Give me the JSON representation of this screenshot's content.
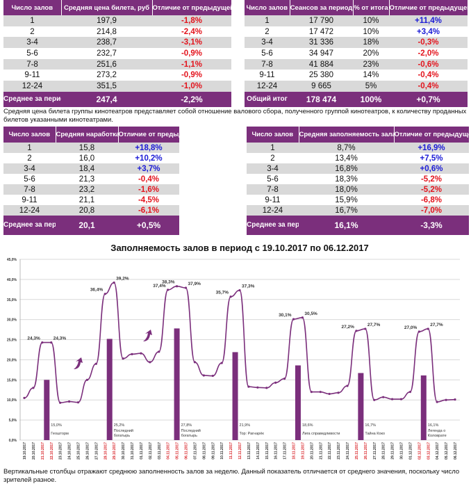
{
  "table_price": {
    "headers": [
      "Число залов",
      "Средняя цена билета, руб",
      "Отличие\nот предыдущей недели"
    ],
    "rows": [
      [
        "1",
        "197,9",
        "-1,8%"
      ],
      [
        "2",
        "214,8",
        "-2,4%"
      ],
      [
        "3-4",
        "238,7",
        "-3,1%"
      ],
      [
        "5-6",
        "232,7",
        "-0,9%"
      ],
      [
        "7-8",
        "251,6",
        "-1,1%"
      ],
      [
        "9-11",
        "273,2",
        "-0,9%"
      ],
      [
        "12-24",
        "351,5",
        "-1,0%"
      ]
    ],
    "total": [
      "Среднее за период",
      "247,4",
      "-2,2%"
    ]
  },
  "table_sessions": {
    "headers": [
      "Число залов",
      "Сеансов за период",
      "% от итога",
      "Отличие от предыдущей недели"
    ],
    "rows": [
      [
        "1",
        "17 790",
        "10%",
        "+11,4%"
      ],
      [
        "2",
        "17 472",
        "10%",
        "+3,4%"
      ],
      [
        "3-4",
        "31 336",
        "18%",
        "-0,3%"
      ],
      [
        "5-6",
        "34 947",
        "20%",
        "-2,0%"
      ],
      [
        "7-8",
        "41 884",
        "23%",
        "-0,6%"
      ],
      [
        "9-11",
        "25 380",
        "14%",
        "-0,4%"
      ],
      [
        "12-24",
        "9 665",
        "5%",
        "-0,4%"
      ]
    ],
    "total": [
      "Общий итог",
      "178 474",
      "100%",
      "+0,7%"
    ]
  },
  "note_price": "Средняя цена билета группы кинотеатров представляет собой отношение валового сбора, полученного группой кинотеатров, к количеству проданных билетов указанными кинотеатрами.",
  "table_viewers": {
    "headers": [
      "Число залов",
      "Средняя наработка (зрителей на сеанс)",
      "Отличие от предыдущей недели"
    ],
    "rows": [
      [
        "1",
        "15,8",
        "+18,8%"
      ],
      [
        "2",
        "16,0",
        "+10,2%"
      ],
      [
        "3-4",
        "18,4",
        "+3,7%"
      ],
      [
        "5-6",
        "21,3",
        "-0,4%"
      ],
      [
        "7-8",
        "23,2",
        "-1,6%"
      ],
      [
        "9-11",
        "21,1",
        "-4,5%"
      ],
      [
        "12-24",
        "20,8",
        "-6,1%"
      ]
    ],
    "total": [
      "Среднее за период",
      "20,1",
      "+0,5%"
    ]
  },
  "table_occupancy": {
    "headers": [
      "Число залов",
      "Средняя заполняемость зала, %",
      "Отличие от предыдущей недели"
    ],
    "rows": [
      [
        "1",
        "8,7%",
        "+16,9%"
      ],
      [
        "2",
        "13,4%",
        "+7,5%"
      ],
      [
        "3-4",
        "16,8%",
        "+0,6%"
      ],
      [
        "5-6",
        "18,3%",
        "-5,2%"
      ],
      [
        "7-8",
        "18,0%",
        "-5,2%"
      ],
      [
        "9-11",
        "15,9%",
        "-6,8%"
      ],
      [
        "12-24",
        "16,7%",
        "-7,0%"
      ]
    ],
    "total": [
      "Среднее за период",
      "16,1%",
      "-3,3%"
    ]
  },
  "colors": {
    "accent": "#7b2f7c",
    "negative": "#e3141d",
    "positive": "#1b1bd6",
    "weekend_label": "#d9262b"
  },
  "chart_data": {
    "type": "line+bar",
    "title": "Заполняемость залов в период с 19.10.2017 по 06.12.2017",
    "ylim": [
      0,
      45
    ],
    "yticks": [
      "0,0%",
      "5,0%",
      "10,0%",
      "15,0%",
      "20,0%",
      "25,0%",
      "30,0%",
      "35,0%",
      "40,0%",
      "45,0%"
    ],
    "grid": true,
    "x": [
      "19.10.2017",
      "20.10.2017",
      "21.10.2017",
      "22.10.2017",
      "23.10.2017",
      "24.10.2017",
      "25.10.2017",
      "26.10.2017",
      "27.10.2017",
      "28.10.2017",
      "29.10.2017",
      "30.10.2017",
      "31.10.2017",
      "01.11.2017",
      "02.11.2017",
      "03.11.2017",
      "04.11.2017",
      "05.11.2017",
      "06.11.2017",
      "07.11.2017",
      "08.11.2017",
      "09.11.2017",
      "10.11.2017",
      "11.11.2017",
      "12.11.2017",
      "13.11.2017",
      "14.11.2017",
      "15.11.2017",
      "16.11.2017",
      "17.11.2017",
      "18.11.2017",
      "19.11.2017",
      "20.11.2017",
      "21.11.2017",
      "22.11.2017",
      "23.11.2017",
      "24.11.2017",
      "25.11.2017",
      "26.11.2017",
      "27.11.2017",
      "28.11.2017",
      "29.11.2017",
      "30.11.2017",
      "01.12.2017",
      "02.12.2017",
      "03.12.2017",
      "04.12.2017",
      "05.12.2017",
      "06.12.2017"
    ],
    "weekends": [
      "21.10.2017",
      "22.10.2017",
      "28.10.2017",
      "29.10.2017",
      "04.11.2017",
      "05.11.2017",
      "06.11.2017",
      "11.11.2017",
      "12.11.2017",
      "18.11.2017",
      "19.11.2017",
      "25.11.2017",
      "26.11.2017",
      "02.12.2017",
      "03.12.2017"
    ],
    "line": [
      10.5,
      13.0,
      24.3,
      24.3,
      9.3,
      9.6,
      9.4,
      15.0,
      19.0,
      36.4,
      39.2,
      20.3,
      21.4,
      21.6,
      19.4,
      22.0,
      37.4,
      38.3,
      37.9,
      19.4,
      16.1,
      16.0,
      19.2,
      35.7,
      37.3,
      13.3,
      13.1,
      13.0,
      14.3,
      15.3,
      30.1,
      30.5,
      12.0,
      12.0,
      11.5,
      11.8,
      13.5,
      27.2,
      27.7,
      10.0,
      10.7,
      10.2,
      10.2,
      12.0,
      27.0,
      27.7,
      9.5,
      10.0,
      10.1
    ],
    "line_labels": [
      {
        "i": 2,
        "t": "24,3%"
      },
      {
        "i": 3,
        "t": "24,3%"
      },
      {
        "i": 9,
        "t": "36,4%"
      },
      {
        "i": 10,
        "t": "39,2%"
      },
      {
        "i": 16,
        "t": "37,4%"
      },
      {
        "i": 17,
        "t": "38,3%"
      },
      {
        "i": 18,
        "t": "37,9%"
      },
      {
        "i": 23,
        "t": "35,7%"
      },
      {
        "i": 24,
        "t": "37,3%"
      },
      {
        "i": 30,
        "t": "30,1%"
      },
      {
        "i": 31,
        "t": "30,5%"
      },
      {
        "i": 37,
        "t": "27,2%"
      },
      {
        "i": 38,
        "t": "27,7%"
      },
      {
        "i": 44,
        "t": "27,0%"
      },
      {
        "i": 45,
        "t": "27,7%"
      }
    ],
    "bars": [
      {
        "pos": 2.5,
        "value": 15.0,
        "label": "15,0%",
        "film": "Геошторм"
      },
      {
        "pos": 9.5,
        "value": 25.2,
        "label": "25,2%",
        "film": "Последний богатырь"
      },
      {
        "pos": 17,
        "value": 27.8,
        "label": "27,8%",
        "film": "Последний богатырь"
      },
      {
        "pos": 23.5,
        "value": 21.9,
        "label": "21,9%",
        "film": "Тор: Рагнарёк"
      },
      {
        "pos": 30.5,
        "value": 18.6,
        "label": "18,6%",
        "film": "Лига справедливости"
      },
      {
        "pos": 37.5,
        "value": 16.7,
        "label": "16,7%",
        "film": "Тайна Коко"
      },
      {
        "pos": 44.5,
        "value": 16.1,
        "label": "16,1%",
        "film": "Легенда о Коловрате"
      }
    ]
  },
  "note_chart": "Вертикальные столбцы отражают среднюю заполненность залов за неделю. Данный показатель отличается от среднего значения, поскольку число зрителей разное."
}
